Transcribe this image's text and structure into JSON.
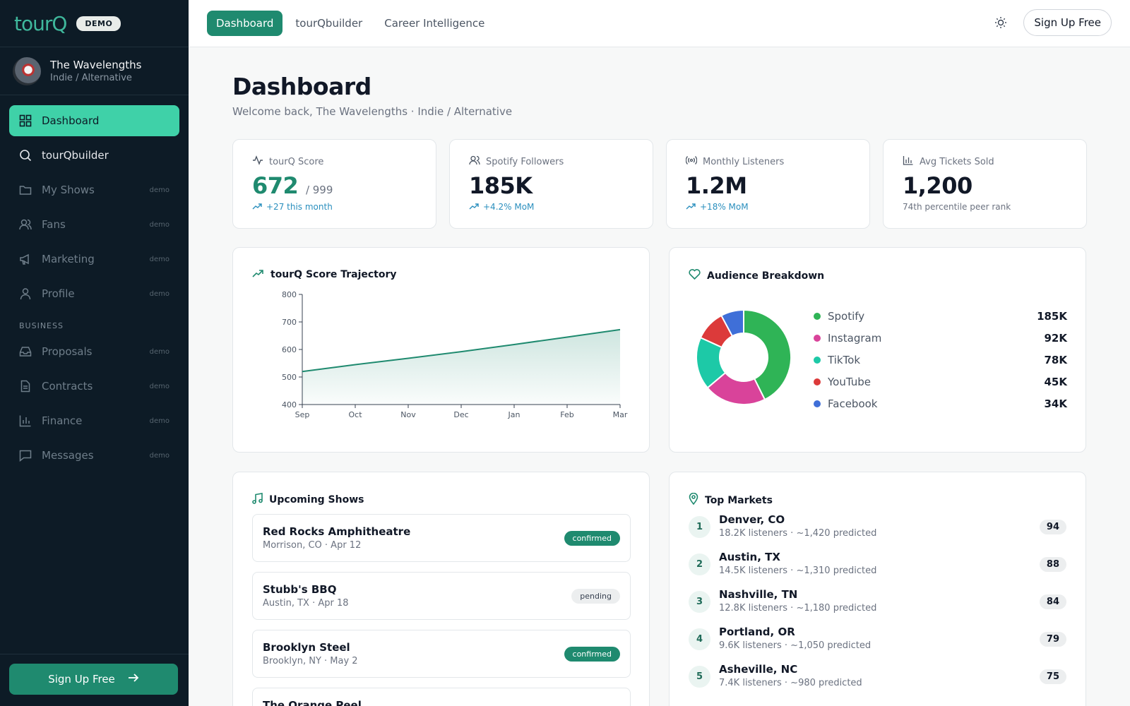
{
  "brand": {
    "logo": "tourQ",
    "badge": "DEMO"
  },
  "artist": {
    "name": "The Wavelengths",
    "genre": "Indie / Alternative"
  },
  "nav": {
    "items": [
      {
        "label": "Dashboard",
        "tag": ""
      },
      {
        "label": "tourQbuilder",
        "tag": ""
      },
      {
        "label": "My Shows",
        "tag": "demo"
      },
      {
        "label": "Fans",
        "tag": "demo"
      },
      {
        "label": "Marketing",
        "tag": "demo"
      },
      {
        "label": "Profile",
        "tag": "demo"
      }
    ],
    "section": "BUSINESS",
    "business": [
      {
        "label": "Proposals",
        "tag": "demo"
      },
      {
        "label": "Contracts",
        "tag": "demo"
      },
      {
        "label": "Finance",
        "tag": "demo"
      },
      {
        "label": "Messages",
        "tag": "demo"
      }
    ],
    "signup": "Sign Up Free"
  },
  "topbar": {
    "tabs": [
      "Dashboard",
      "tourQbuilder",
      "Career Intelligence"
    ],
    "signup": "Sign Up Free"
  },
  "page": {
    "title": "Dashboard",
    "subtitle": "Welcome back, The Wavelengths · Indie / Alternative"
  },
  "stats": [
    {
      "label": "tourQ Score",
      "value": "672",
      "of": "/ 999",
      "foot": "+27 this month"
    },
    {
      "label": "Spotify Followers",
      "value": "185K",
      "foot": "+4.2% MoM"
    },
    {
      "label": "Monthly Listeners",
      "value": "1.2M",
      "foot": "+18% MoM"
    },
    {
      "label": "Avg Tickets Sold",
      "value": "1,200",
      "foot": "74th percentile peer rank"
    }
  ],
  "trajectory": {
    "title": "tourQ Score Trajectory"
  },
  "audience": {
    "title": "Audience Breakdown",
    "items": [
      {
        "name": "Spotify",
        "value": "185K",
        "color": "#2fb456"
      },
      {
        "name": "Instagram",
        "value": "92K",
        "color": "#d9439a"
      },
      {
        "name": "TikTok",
        "value": "78K",
        "color": "#1dc9a7"
      },
      {
        "name": "YouTube",
        "value": "45K",
        "color": "#dc3a3a"
      },
      {
        "name": "Facebook",
        "value": "34K",
        "color": "#3f6fd8"
      }
    ]
  },
  "shows": {
    "title": "Upcoming Shows",
    "items": [
      {
        "name": "Red Rocks Amphitheatre",
        "meta": "Morrison, CO · Apr 12",
        "status": "confirmed"
      },
      {
        "name": "Stubb's BBQ",
        "meta": "Austin, TX · Apr 18",
        "status": "pending"
      },
      {
        "name": "Brooklyn Steel",
        "meta": "Brooklyn, NY · May 2",
        "status": "confirmed"
      },
      {
        "name": "The Orange Peel",
        "meta": "",
        "status": ""
      }
    ]
  },
  "markets": {
    "title": "Top Markets",
    "items": [
      {
        "rank": "1",
        "name": "Denver, CO",
        "meta": "18.2K listeners · ~1,420 predicted",
        "score": "94"
      },
      {
        "rank": "2",
        "name": "Austin, TX",
        "meta": "14.5K listeners · ~1,310 predicted",
        "score": "88"
      },
      {
        "rank": "3",
        "name": "Nashville, TN",
        "meta": "12.8K listeners · ~1,180 predicted",
        "score": "84"
      },
      {
        "rank": "4",
        "name": "Portland, OR",
        "meta": "9.6K listeners · ~1,050 predicted",
        "score": "79"
      },
      {
        "rank": "5",
        "name": "Asheville, NC",
        "meta": "7.4K listeners · ~980 predicted",
        "score": "75"
      }
    ]
  },
  "chart_data": [
    {
      "type": "area",
      "title": "tourQ Score Trajectory",
      "categories": [
        "Sep",
        "Oct",
        "Nov",
        "Dec",
        "Jan",
        "Feb",
        "Mar"
      ],
      "values": [
        520,
        545,
        568,
        592,
        618,
        645,
        672
      ],
      "ylim": [
        400,
        800
      ],
      "yticks": [
        400,
        500,
        600,
        700,
        800
      ],
      "color": "#1f8a6f"
    },
    {
      "type": "pie",
      "title": "Audience Breakdown",
      "labels": [
        "Spotify",
        "Instagram",
        "TikTok",
        "YouTube",
        "Facebook"
      ],
      "values": [
        185,
        92,
        78,
        45,
        34
      ]
    }
  ]
}
